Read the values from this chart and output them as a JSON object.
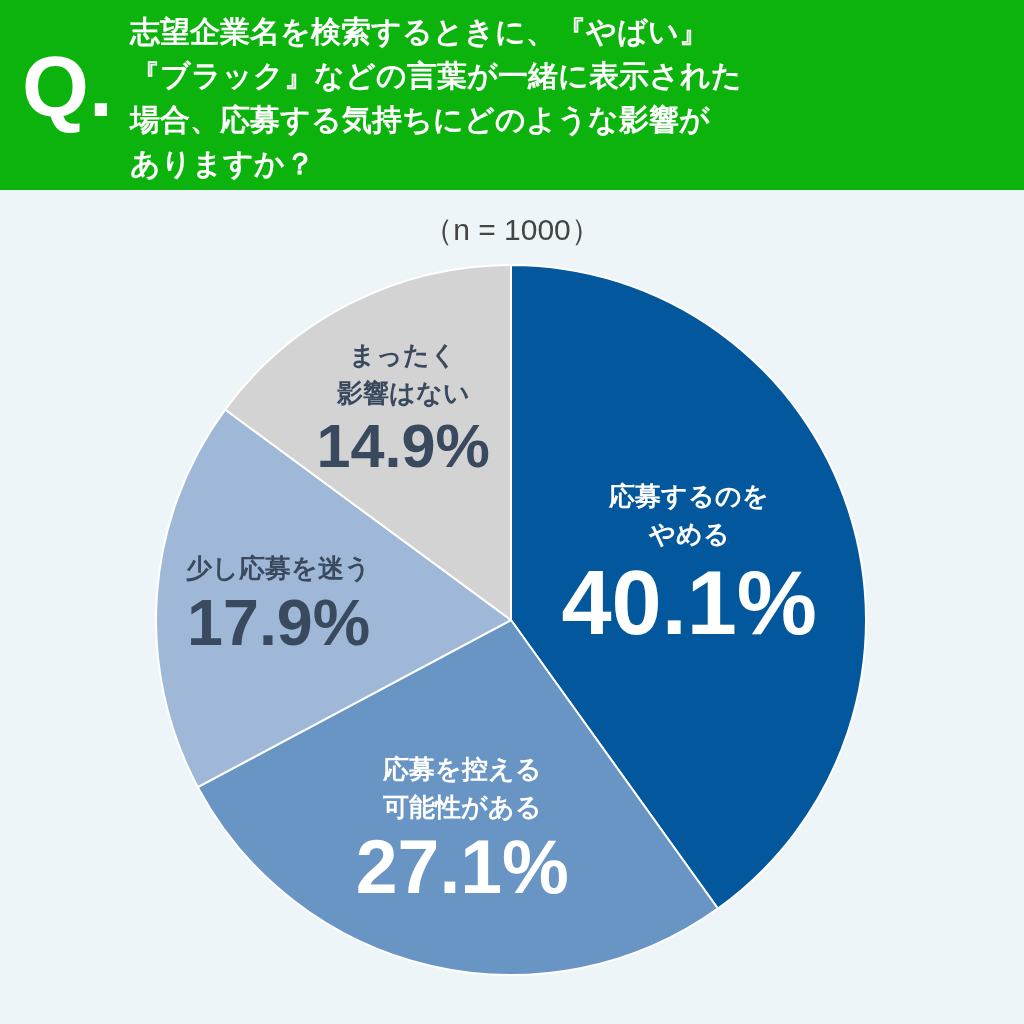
{
  "chart_data": {
    "type": "pie",
    "title": "志望企業名を検索するときに、『やばい』『ブラック』などの言葉が一緒に表示された場合、応募する気持ちにどのような影響がありますか？",
    "subtitle": "（n = 1000）",
    "annotations": [
      "Q."
    ],
    "categories": [
      "応募するのをやめる",
      "応募を控える可能性がある",
      "少し応募を迷う",
      "まったく影響はない"
    ],
    "values": [
      40.1,
      27.1,
      17.9,
      14.9
    ],
    "value_labels": [
      "40.1%",
      "27.1%",
      "17.9%",
      "14.9%"
    ],
    "colors": [
      "#03579c",
      "#6995c4",
      "#a0b8d7",
      "#d3d3d3"
    ],
    "legend": false
  }
}
